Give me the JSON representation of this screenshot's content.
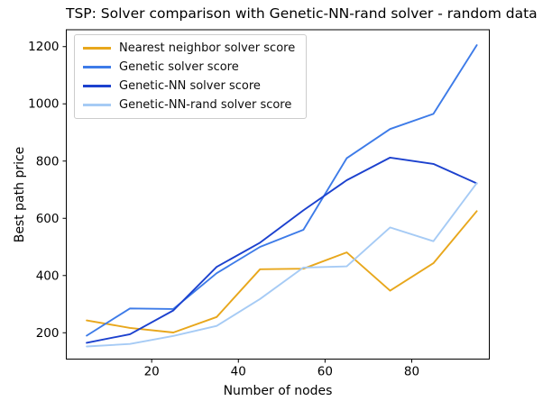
{
  "chart_data": {
    "type": "line",
    "title": "TSP: Solver comparison with Genetic-NN-rand solver - random data",
    "xlabel": "Number of nodes",
    "ylabel": "Best path price",
    "x": [
      5,
      15,
      25,
      35,
      45,
      55,
      65,
      75,
      85,
      95
    ],
    "series": [
      {
        "name": "Nearest neighbor solver score",
        "color": "#E8A71C",
        "values": [
          243,
          217,
          201,
          255,
          422,
          424,
          481,
          347,
          443,
          625
        ]
      },
      {
        "name": "Genetic solver score",
        "color": "#3D7BE8",
        "values": [
          190,
          285,
          283,
          408,
          500,
          560,
          810,
          912,
          965,
          1205
        ]
      },
      {
        "name": "Genetic-NN solver score",
        "color": "#1C41CE",
        "values": [
          165,
          195,
          278,
          430,
          515,
          628,
          733,
          812,
          790,
          722
        ]
      },
      {
        "name": "Genetic-NN-rand solver score",
        "color": "#A6CBF5",
        "values": [
          152,
          161,
          189,
          224,
          318,
          428,
          432,
          568,
          520,
          723
        ]
      }
    ],
    "xticks": [
      20,
      40,
      60,
      80
    ],
    "yticks": [
      200,
      400,
      600,
      800,
      1000,
      1200
    ],
    "xlim": [
      0.3,
      97.9
    ],
    "ylim": [
      108,
      1259
    ],
    "grid": false,
    "legend_position": "upper left",
    "axis_color": "#000000"
  }
}
